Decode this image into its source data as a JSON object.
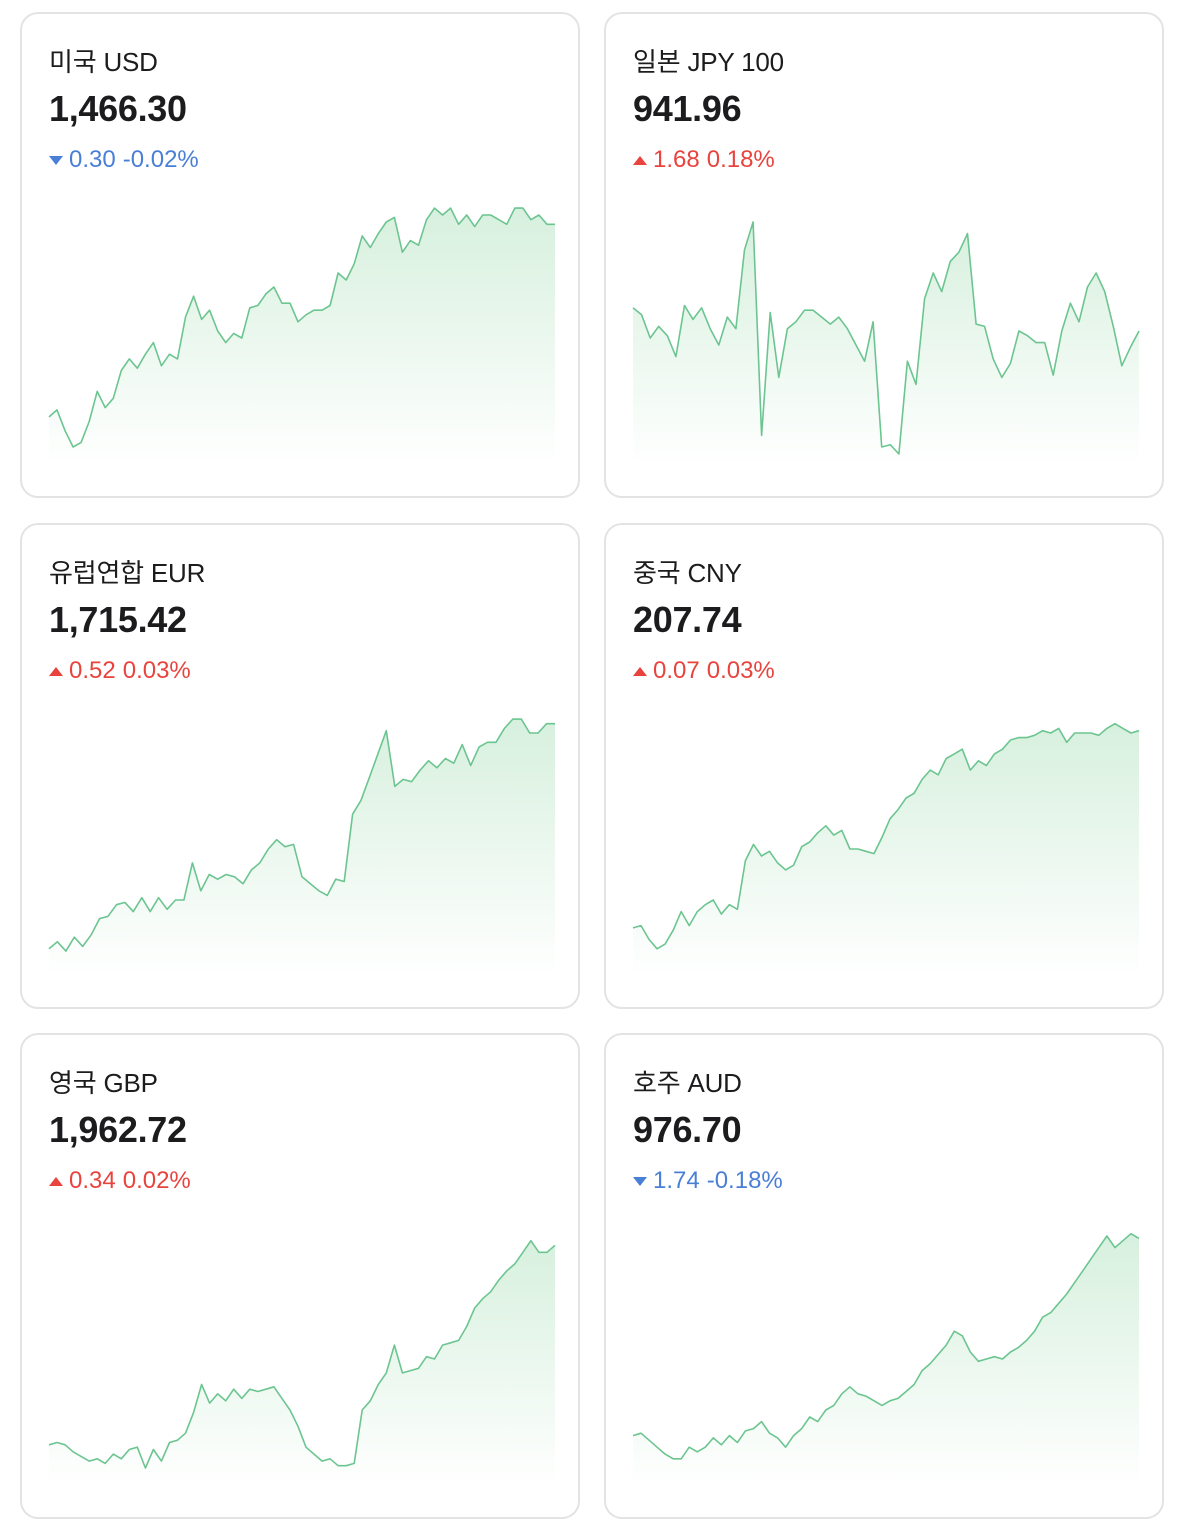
{
  "colors": {
    "line": "#6cc590",
    "fill_top": "#d7f0de",
    "fill_bottom": "#ffffff",
    "up": "#e8433d",
    "down": "#4a7fd6"
  },
  "cards": [
    {
      "name": "미국 USD",
      "value": "1,466.30",
      "direction": "down",
      "change": "0.30",
      "percent": "-0.02%",
      "series": [
        0.16,
        0.19,
        0.1,
        0.03,
        0.05,
        0.14,
        0.27,
        0.2,
        0.24,
        0.36,
        0.41,
        0.37,
        0.43,
        0.48,
        0.38,
        0.43,
        0.41,
        0.59,
        0.68,
        0.58,
        0.62,
        0.53,
        0.48,
        0.52,
        0.5,
        0.63,
        0.64,
        0.69,
        0.72,
        0.65,
        0.65,
        0.57,
        0.6,
        0.62,
        0.62,
        0.64,
        0.78,
        0.75,
        0.82,
        0.94,
        0.89,
        0.95,
        1.0,
        1.02,
        0.87,
        0.92,
        0.9,
        1.01,
        1.06,
        1.03,
        1.06,
        0.99,
        1.03,
        0.98,
        1.03,
        1.03,
        1.01,
        0.99,
        1.06,
        1.06,
        1.01,
        1.03,
        0.99,
        0.99
      ]
    },
    {
      "name": "일본 JPY 100",
      "value": "941.96",
      "direction": "up",
      "change": "1.68",
      "percent": "0.18%",
      "series": [
        0.63,
        0.6,
        0.5,
        0.55,
        0.51,
        0.42,
        0.64,
        0.58,
        0.63,
        0.54,
        0.47,
        0.59,
        0.54,
        0.88,
        1.0,
        0.08,
        0.61,
        0.33,
        0.54,
        0.57,
        0.62,
        0.62,
        0.59,
        0.56,
        0.59,
        0.54,
        0.47,
        0.4,
        0.57,
        0.03,
        0.04,
        0.0,
        0.4,
        0.3,
        0.67,
        0.78,
        0.7,
        0.83,
        0.87,
        0.95,
        0.56,
        0.55,
        0.41,
        0.33,
        0.39,
        0.53,
        0.51,
        0.48,
        0.48,
        0.34,
        0.53,
        0.65,
        0.57,
        0.72,
        0.78,
        0.7,
        0.55,
        0.38,
        0.46,
        0.53
      ]
    },
    {
      "name": "유럽연합 EUR",
      "value": "1,715.42",
      "direction": "up",
      "change": "0.52",
      "percent": "0.03%",
      "series": [
        0.07,
        0.1,
        0.06,
        0.12,
        0.08,
        0.13,
        0.2,
        0.21,
        0.26,
        0.27,
        0.23,
        0.29,
        0.23,
        0.29,
        0.24,
        0.28,
        0.28,
        0.44,
        0.32,
        0.39,
        0.37,
        0.39,
        0.38,
        0.35,
        0.41,
        0.44,
        0.5,
        0.54,
        0.51,
        0.52,
        0.38,
        0.35,
        0.32,
        0.3,
        0.37,
        0.36,
        0.65,
        0.71,
        0.81,
        0.91,
        1.01,
        0.77,
        0.8,
        0.79,
        0.84,
        0.88,
        0.85,
        0.89,
        0.87,
        0.95,
        0.86,
        0.94,
        0.96,
        0.96,
        1.02,
        1.06,
        1.06,
        1.0,
        1.0,
        1.04,
        1.04
      ]
    },
    {
      "name": "중국 CNY",
      "value": "207.74",
      "direction": "up",
      "change": "0.07",
      "percent": "0.03%",
      "series": [
        0.16,
        0.17,
        0.11,
        0.07,
        0.09,
        0.15,
        0.23,
        0.17,
        0.23,
        0.26,
        0.28,
        0.22,
        0.26,
        0.24,
        0.45,
        0.52,
        0.47,
        0.49,
        0.44,
        0.41,
        0.43,
        0.51,
        0.53,
        0.57,
        0.6,
        0.56,
        0.58,
        0.5,
        0.5,
        0.49,
        0.48,
        0.55,
        0.63,
        0.67,
        0.72,
        0.74,
        0.8,
        0.84,
        0.82,
        0.89,
        0.91,
        0.93,
        0.84,
        0.88,
        0.86,
        0.91,
        0.93,
        0.97,
        0.98,
        0.98,
        0.99,
        1.01,
        1.0,
        1.02,
        0.96,
        1.0,
        1.0,
        1.0,
        0.99,
        1.02,
        1.04,
        1.02,
        1.0,
        1.01
      ]
    },
    {
      "name": "영국 GBP",
      "value": "1,962.72",
      "direction": "up",
      "change": "0.34",
      "percent": "0.02%",
      "series": [
        0.13,
        0.14,
        0.13,
        0.1,
        0.08,
        0.06,
        0.07,
        0.05,
        0.09,
        0.07,
        0.11,
        0.12,
        0.03,
        0.11,
        0.06,
        0.14,
        0.15,
        0.18,
        0.27,
        0.39,
        0.31,
        0.35,
        0.32,
        0.37,
        0.33,
        0.37,
        0.36,
        0.37,
        0.38,
        0.33,
        0.28,
        0.21,
        0.12,
        0.09,
        0.06,
        0.07,
        0.04,
        0.04,
        0.05,
        0.28,
        0.32,
        0.39,
        0.44,
        0.56,
        0.44,
        0.45,
        0.46,
        0.51,
        0.5,
        0.56,
        0.57,
        0.58,
        0.64,
        0.72,
        0.76,
        0.79,
        0.84,
        0.88,
        0.91,
        0.96,
        1.01,
        0.96,
        0.96,
        0.99
      ]
    },
    {
      "name": "호주 AUD",
      "value": "976.70",
      "direction": "down",
      "change": "1.74",
      "percent": "-0.18%",
      "series": [
        0.17,
        0.18,
        0.15,
        0.12,
        0.09,
        0.07,
        0.07,
        0.12,
        0.1,
        0.12,
        0.16,
        0.13,
        0.17,
        0.14,
        0.19,
        0.2,
        0.23,
        0.18,
        0.16,
        0.12,
        0.17,
        0.2,
        0.25,
        0.23,
        0.28,
        0.3,
        0.35,
        0.38,
        0.35,
        0.34,
        0.32,
        0.3,
        0.32,
        0.33,
        0.36,
        0.39,
        0.45,
        0.48,
        0.52,
        0.56,
        0.62,
        0.6,
        0.53,
        0.49,
        0.5,
        0.51,
        0.5,
        0.53,
        0.55,
        0.58,
        0.62,
        0.68,
        0.7,
        0.74,
        0.78,
        0.83,
        0.88,
        0.93,
        0.98,
        1.03,
        0.98,
        1.01,
        1.04,
        1.02
      ]
    }
  ]
}
